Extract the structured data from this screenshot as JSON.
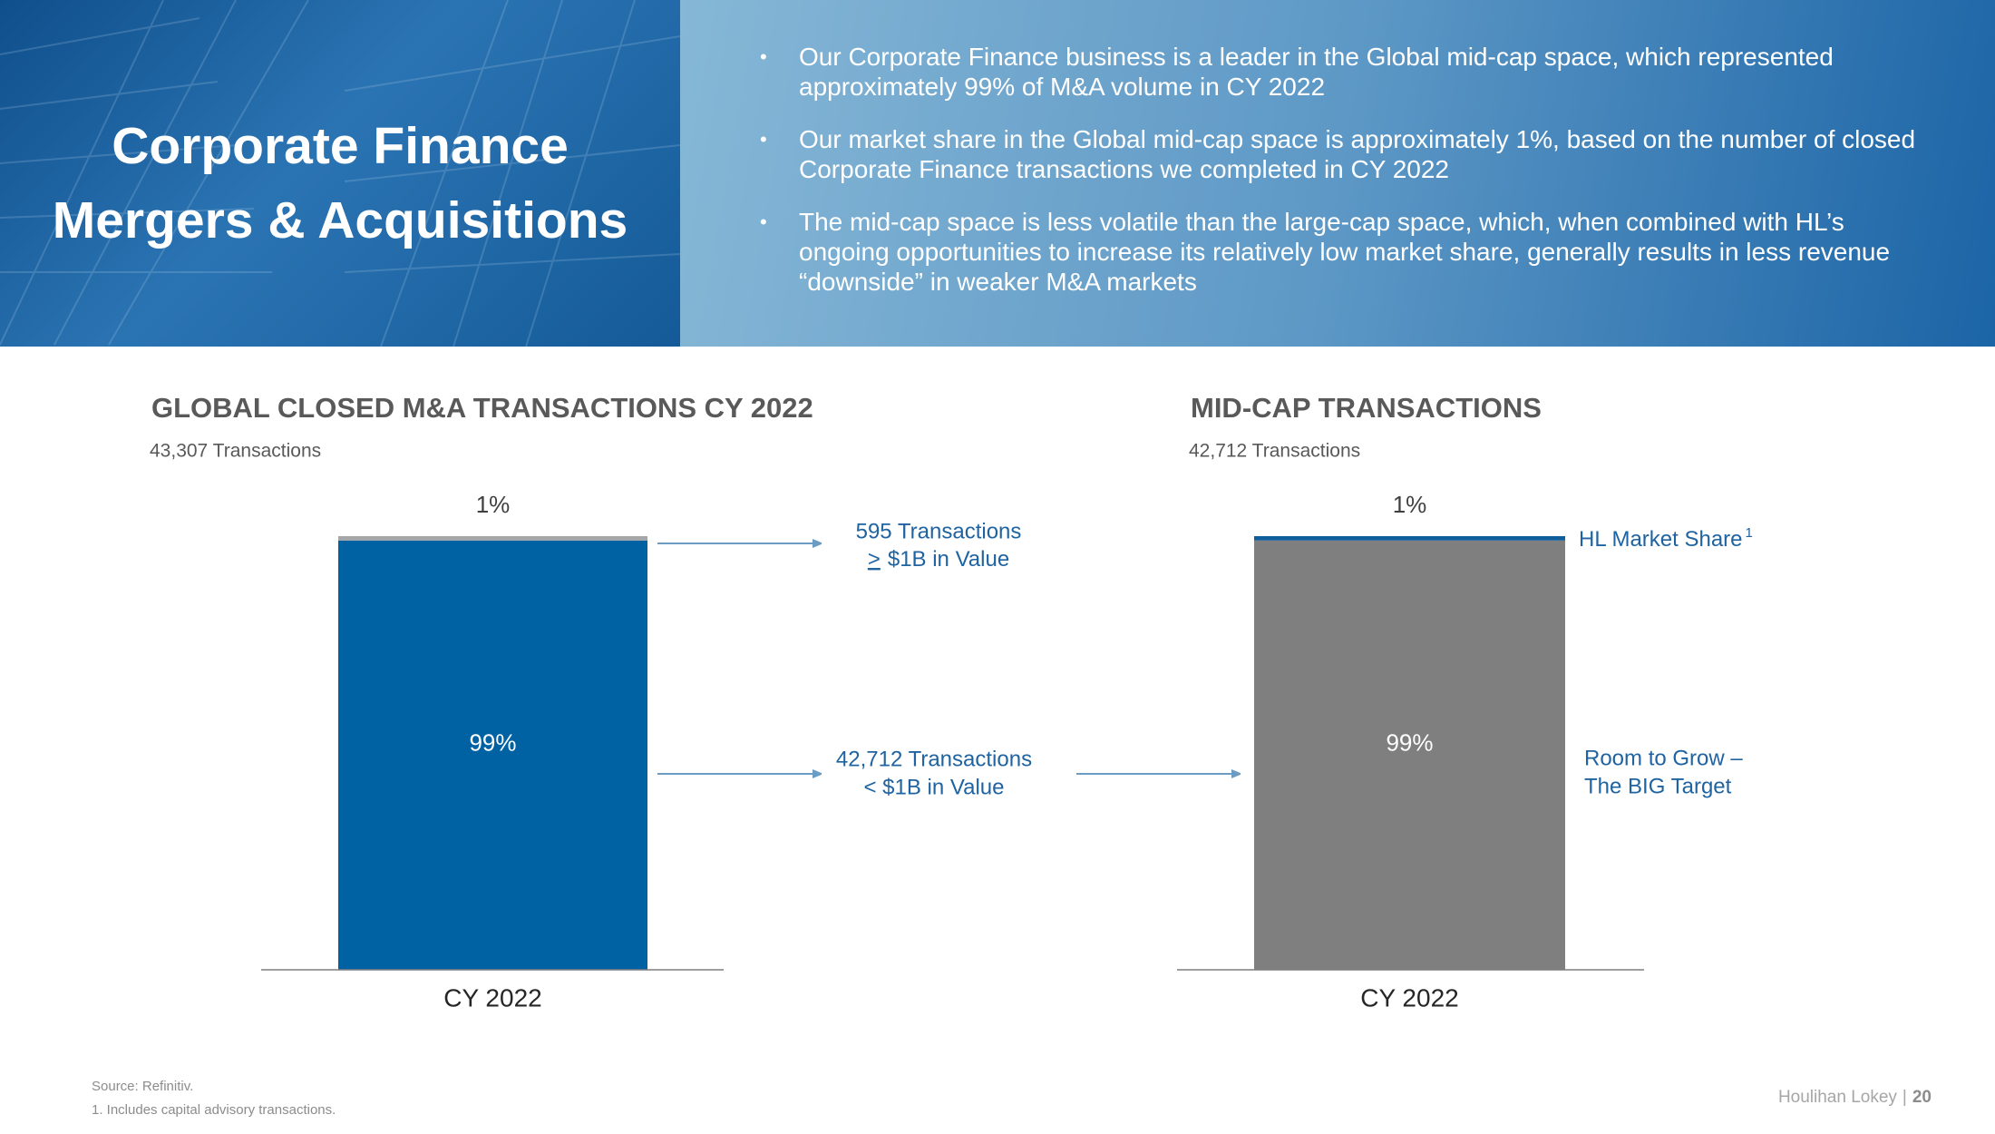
{
  "header": {
    "title_lines": [
      "Corporate Finance",
      "Mergers & Acquisitions"
    ],
    "bullets": [
      "Our Corporate Finance business is a leader in the Global mid-cap space, which represented approximately 99% of M&A volume in CY 2022",
      "Our market share in the Global mid-cap space is approximately 1%, based on the number of closed Corporate Finance transactions we completed in CY 2022",
      "The mid-cap space is less volatile than the large-cap space, which, when combined with HL’s ongoing opportunities to increase its relatively low market share, generally results in less revenue “downside” in weaker M&A markets"
    ]
  },
  "chart_data": [
    {
      "type": "stacked_bar",
      "title": "GLOBAL CLOSED M&A TRANSACTIONS CY 2022",
      "subtitle": "43,307 Transactions",
      "categories": [
        "CY 2022"
      ],
      "ylim": [
        0,
        100
      ],
      "series": [
        {
          "color": "#0062a3",
          "values": [
            99
          ],
          "value_labels": [
            "99%"
          ]
        },
        {
          "color": "#a6a6a6",
          "values": [
            1
          ],
          "value_labels": [
            "1%"
          ]
        }
      ]
    },
    {
      "type": "stacked_bar",
      "title": "MID-CAP TRANSACTIONS",
      "subtitle": "42,712 Transactions",
      "categories": [
        "CY 2022"
      ],
      "ylim": [
        0,
        100
      ],
      "series": [
        {
          "color": "#7f7f7f",
          "values": [
            99
          ],
          "value_labels": [
            "99%"
          ]
        },
        {
          "color": "#0f5e9c",
          "values": [
            1
          ],
          "value_labels": [
            "1%"
          ]
        }
      ]
    }
  ],
  "annotations": {
    "large_cap": {
      "line1": "595 Transactions",
      "symbol": ">",
      "line2": "$1B in Value"
    },
    "mid_cap": {
      "line1": "42,712 Transactions",
      "line2": "< $1B in Value"
    },
    "market_share": {
      "text": "HL Market Share",
      "footnote_ref": "1"
    },
    "room": {
      "line1": "Room to Grow –",
      "line2": "The BIG Target"
    }
  },
  "footer": {
    "source": "Source: Refinitiv.",
    "note": "1.  Includes capital advisory transactions.",
    "brand": "Houlihan Lokey",
    "page": "20"
  }
}
